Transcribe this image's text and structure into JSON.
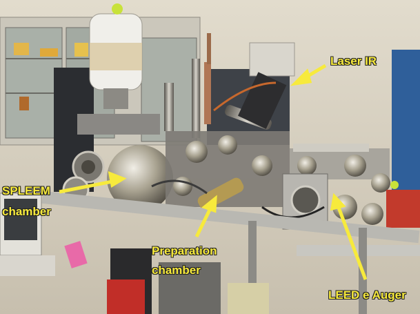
{
  "annotations": {
    "laser": "Laser IR",
    "spleem_line1": "SPLEEM",
    "spleem_line2": "chamber",
    "prep_line1": "Preparation",
    "prep_line2": "chamber",
    "leed": "LEED e Auger"
  },
  "colors": {
    "label": "#f7ea3c",
    "arrow": "#f7ea3c",
    "wall": "#d8d0c0",
    "steel": "#9a9a98",
    "dark_cabinet": "#3e4248",
    "blue_rack": "#2f5f9a"
  }
}
